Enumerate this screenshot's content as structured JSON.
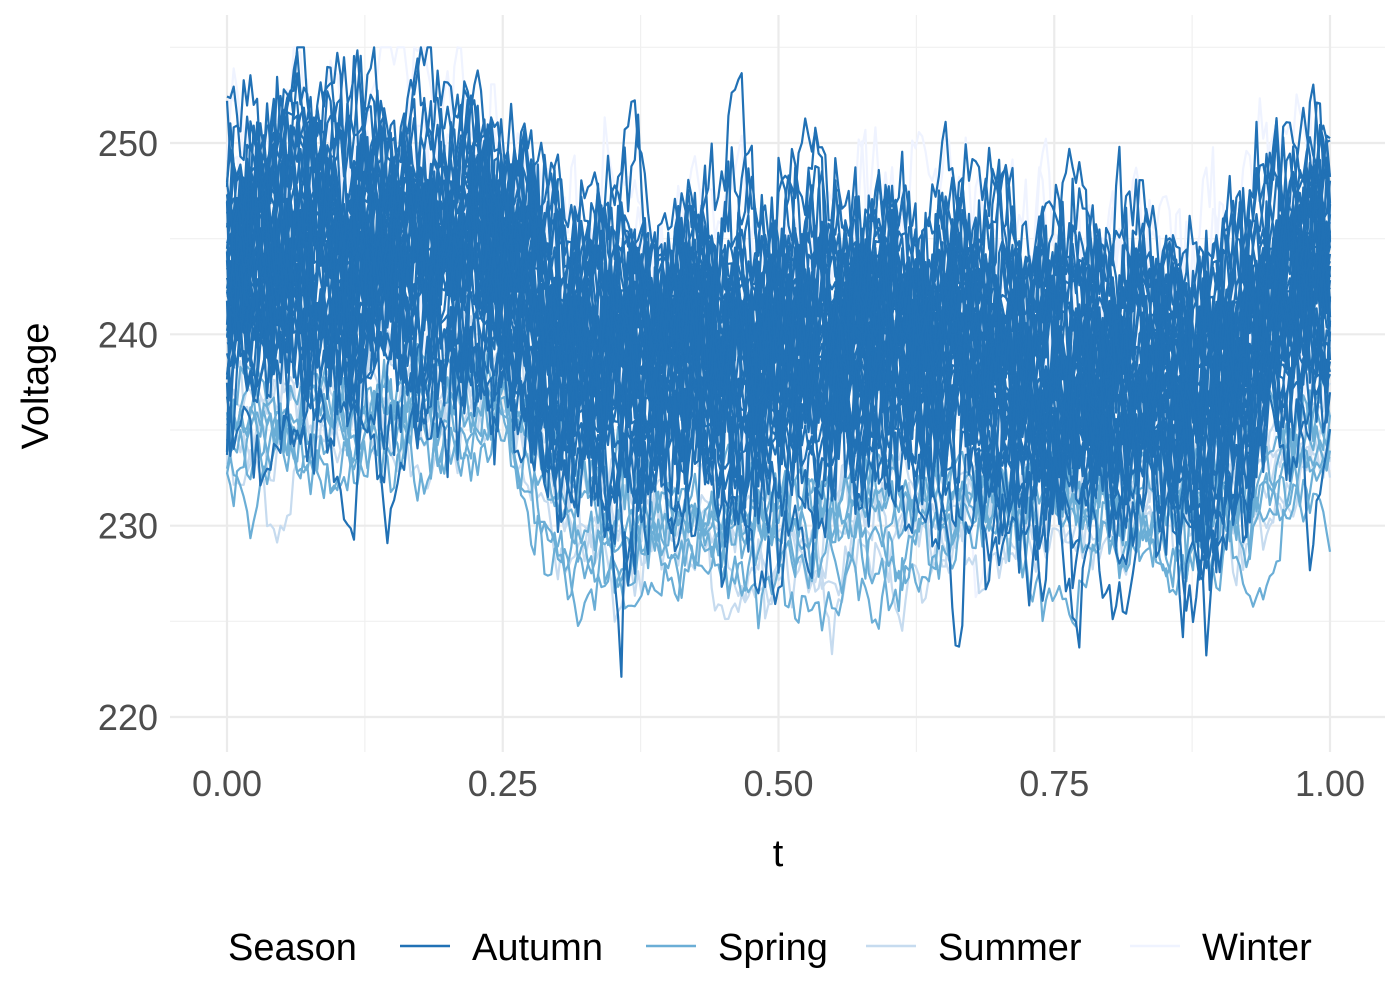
{
  "chart_data": {
    "type": "line",
    "title": "",
    "xlabel": "t",
    "ylabel": "Voltage",
    "xlim": [
      0,
      1
    ],
    "ylim": [
      219,
      256
    ],
    "x_ticks": [
      {
        "value": 0.0,
        "label": "0.00"
      },
      {
        "value": 0.25,
        "label": "0.25"
      },
      {
        "value": 0.5,
        "label": "0.50"
      },
      {
        "value": 0.75,
        "label": "0.75"
      },
      {
        "value": 1.0,
        "label": "1.00"
      }
    ],
    "y_ticks": [
      {
        "value": 220,
        "label": "220"
      },
      {
        "value": 230,
        "label": "230"
      },
      {
        "value": 240,
        "label": "240"
      },
      {
        "value": 250,
        "label": "250"
      }
    ],
    "grid": true,
    "legend": {
      "title": "Season",
      "position": "bottom"
    },
    "series": [
      {
        "name": "Autumn",
        "color": "#2171b5",
        "approx_count": 90,
        "mean_profile": [
          {
            "t": 0.0,
            "mean": 243
          },
          {
            "t": 0.1,
            "mean": 244
          },
          {
            "t": 0.25,
            "mean": 244
          },
          {
            "t": 0.3,
            "mean": 239
          },
          {
            "t": 0.5,
            "mean": 239
          },
          {
            "t": 0.65,
            "mean": 240
          },
          {
            "t": 0.75,
            "mean": 237
          },
          {
            "t": 0.9,
            "mean": 237
          },
          {
            "t": 0.95,
            "mean": 242
          },
          {
            "t": 1.0,
            "mean": 243
          }
        ],
        "spread": 4.8
      },
      {
        "name": "Spring",
        "color": "#6baed6",
        "approx_count": 14,
        "mean_profile": [
          {
            "t": 0.0,
            "mean": 235
          },
          {
            "t": 0.25,
            "mean": 237
          },
          {
            "t": 0.3,
            "mean": 230
          },
          {
            "t": 0.5,
            "mean": 230
          },
          {
            "t": 0.75,
            "mean": 232
          },
          {
            "t": 0.9,
            "mean": 231
          },
          {
            "t": 1.0,
            "mean": 235
          }
        ],
        "spread": 2.5
      },
      {
        "name": "Summer",
        "color": "#c6dbef",
        "approx_count": 10,
        "mean_profile": [
          {
            "t": 0.0,
            "mean": 234
          },
          {
            "t": 0.25,
            "mean": 237
          },
          {
            "t": 0.3,
            "mean": 230
          },
          {
            "t": 0.5,
            "mean": 229
          },
          {
            "t": 0.75,
            "mean": 231
          },
          {
            "t": 0.9,
            "mean": 231
          },
          {
            "t": 1.0,
            "mean": 233
          }
        ],
        "spread": 2.3
      },
      {
        "name": "Winter",
        "color": "#eff3ff",
        "approx_count": 10,
        "mean_profile": [
          {
            "t": 0.0,
            "mean": 247
          },
          {
            "t": 0.25,
            "mean": 247
          },
          {
            "t": 0.3,
            "mean": 242
          },
          {
            "t": 0.5,
            "mean": 240
          },
          {
            "t": 0.75,
            "mean": 241
          },
          {
            "t": 0.9,
            "mean": 240
          },
          {
            "t": 1.0,
            "mean": 246
          }
        ],
        "spread": 4.5
      }
    ]
  }
}
